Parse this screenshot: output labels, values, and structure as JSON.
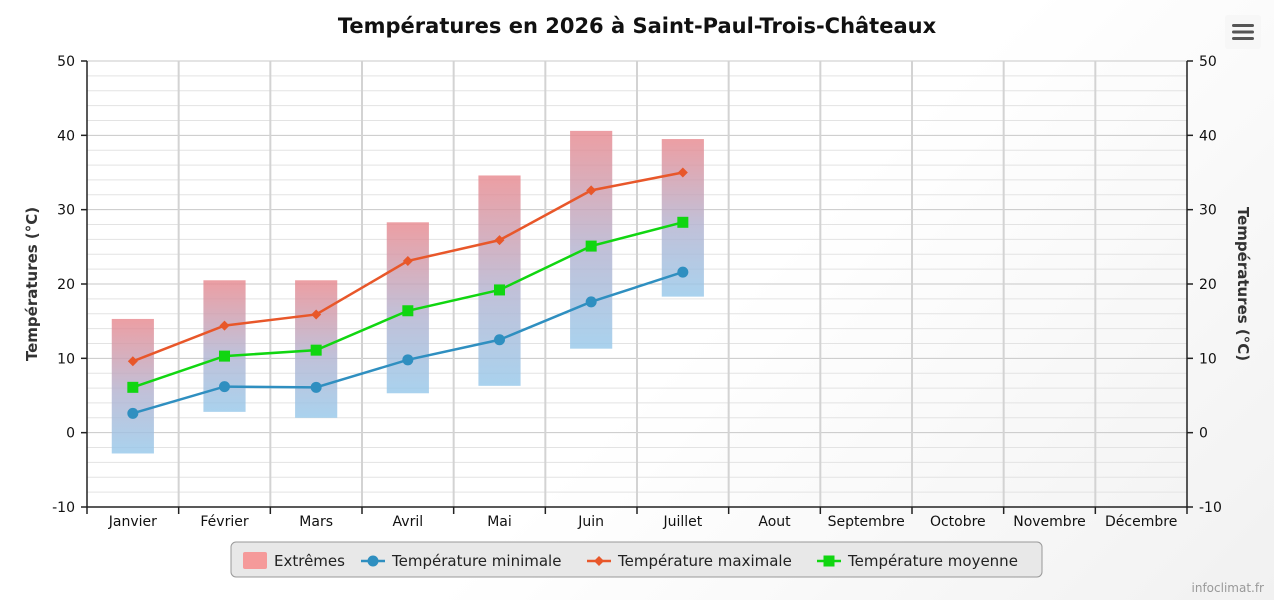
{
  "chart": {
    "title": "Températures en 2026 à Saint-Paul-Trois-Châteaux",
    "credits": "infoclimat.fr",
    "menu_icon": "hamburger-menu-icon"
  },
  "chart_data": {
    "type": "line",
    "title": "Températures en 2026 à Saint-Paul-Trois-Châteaux",
    "ylabel": "Températures (°C)",
    "ylabel_right": "Températures (°C)",
    "ylim": [
      -10,
      50
    ],
    "yticks": [
      -10,
      0,
      10,
      20,
      30,
      40,
      50
    ],
    "grid": true,
    "legend_position": "bottom-center",
    "categories": [
      "Janvier",
      "Février",
      "Mars",
      "Avril",
      "Mai",
      "Juin",
      "Juillet",
      "Aout",
      "Septembre",
      "Octobre",
      "Novembre",
      "Décembre"
    ],
    "ranges": {
      "name": "Extrêmes",
      "color": "#f59a9a",
      "low": [
        -2.8,
        2.8,
        2.0,
        5.3,
        6.3,
        11.3,
        18.3,
        null,
        null,
        null,
        null,
        null
      ],
      "high": [
        15.3,
        20.5,
        20.5,
        28.3,
        34.6,
        40.6,
        39.5,
        null,
        null,
        null,
        null,
        null
      ]
    },
    "series": [
      {
        "name": "Température minimale",
        "color": "#2f8fc0",
        "marker": "circle",
        "values": [
          2.6,
          6.2,
          6.1,
          9.8,
          12.5,
          17.6,
          21.6,
          null,
          null,
          null,
          null,
          null
        ]
      },
      {
        "name": "Température maximale",
        "color": "#e8572a",
        "marker": "diamond",
        "values": [
          9.6,
          14.4,
          15.9,
          23.1,
          25.9,
          32.6,
          35.0,
          null,
          null,
          null,
          null,
          null
        ]
      },
      {
        "name": "Température moyenne",
        "color": "#11d611",
        "marker": "square",
        "values": [
          6.1,
          10.3,
          11.1,
          16.4,
          19.2,
          25.1,
          28.3,
          null,
          null,
          null,
          null,
          null
        ]
      }
    ]
  }
}
